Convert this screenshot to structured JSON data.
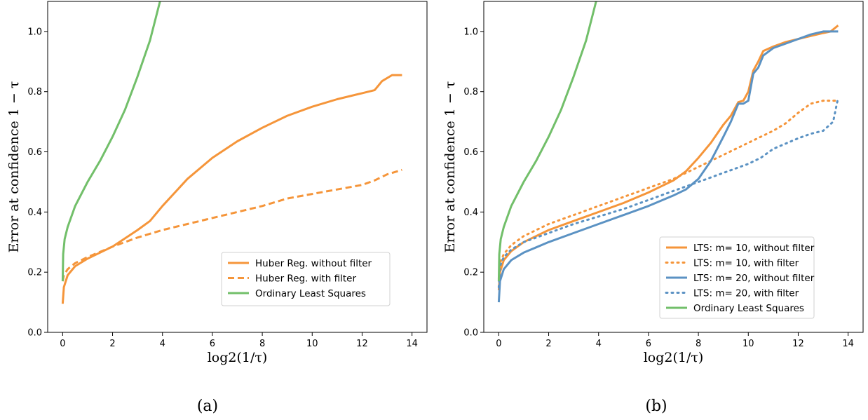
{
  "colors": {
    "orange": "#f5953a",
    "blue": "#5b92c3",
    "green": "#72bf6a"
  },
  "chart_data": [
    {
      "type": "line",
      "panel_label": "(a)",
      "xlabel": "log2(1/τ)",
      "ylabel": "Error at confidence 1 − τ",
      "xlim": [
        -0.6,
        14.6
      ],
      "ylim": [
        0.0,
        1.1
      ],
      "xticks": [
        "0",
        "2",
        "4",
        "6",
        "8",
        "10",
        "12",
        "14"
      ],
      "yticks": [
        "0.0",
        "0.2",
        "0.4",
        "0.6",
        "0.8",
        "1.0"
      ],
      "legend_position": "lower-right",
      "series": [
        {
          "name": "Huber Reg. without filter",
          "color": "orange",
          "style": "solid",
          "x": [
            0,
            0.05,
            0.2,
            0.5,
            1,
            2,
            3,
            3.5,
            4,
            5,
            6,
            7,
            8,
            9,
            10,
            11,
            12,
            12.5,
            12.8,
            13.2,
            13.6
          ],
          "y": [
            0.095,
            0.15,
            0.19,
            0.22,
            0.245,
            0.285,
            0.34,
            0.37,
            0.42,
            0.51,
            0.58,
            0.635,
            0.68,
            0.72,
            0.75,
            0.775,
            0.795,
            0.805,
            0.835,
            0.855,
            0.855
          ]
        },
        {
          "name": "Huber Reg. with filter",
          "color": "orange",
          "style": "dashed",
          "x": [
            0,
            0.05,
            0.2,
            0.5,
            1,
            2,
            3,
            4,
            5,
            6,
            7,
            8,
            9,
            10,
            11,
            12,
            12.5,
            13,
            13.6
          ],
          "y": [
            0.17,
            0.19,
            0.21,
            0.23,
            0.25,
            0.285,
            0.315,
            0.34,
            0.36,
            0.38,
            0.4,
            0.42,
            0.445,
            0.46,
            0.475,
            0.49,
            0.505,
            0.525,
            0.54
          ]
        },
        {
          "name": "Ordinary Least Squares",
          "color": "green",
          "style": "solid",
          "x": [
            0,
            0.02,
            0.08,
            0.2,
            0.5,
            1,
            1.5,
            2,
            2.5,
            3,
            3.5,
            3.9
          ],
          "y": [
            0.17,
            0.26,
            0.31,
            0.35,
            0.42,
            0.5,
            0.57,
            0.65,
            0.74,
            0.85,
            0.97,
            1.1
          ]
        }
      ]
    },
    {
      "type": "line",
      "panel_label": "(b)",
      "xlabel": "log2(1/τ)",
      "ylabel": "Error at confidence 1 − τ",
      "xlim": [
        -0.6,
        14.6
      ],
      "ylim": [
        0.0,
        1.1
      ],
      "xticks": [
        "0",
        "2",
        "4",
        "6",
        "8",
        "10",
        "12",
        "14"
      ],
      "yticks": [
        "0.0",
        "0.2",
        "0.4",
        "0.6",
        "0.8",
        "1.0"
      ],
      "legend_position": "lower-right",
      "series": [
        {
          "name": "LTS: m= 10, without filter",
          "color": "orange",
          "style": "solid",
          "x": [
            0,
            0.05,
            0.2,
            0.5,
            1,
            2,
            3,
            4,
            5,
            6,
            7,
            7.5,
            8,
            8.5,
            9,
            9.3,
            9.6,
            9.8,
            10,
            10.2,
            10.4,
            10.6,
            11,
            11.5,
            12,
            12.5,
            13,
            13.3,
            13.6
          ],
          "y": [
            0.14,
            0.2,
            0.24,
            0.27,
            0.3,
            0.34,
            0.37,
            0.4,
            0.43,
            0.465,
            0.505,
            0.535,
            0.58,
            0.63,
            0.69,
            0.72,
            0.765,
            0.77,
            0.8,
            0.87,
            0.9,
            0.935,
            0.95,
            0.965,
            0.975,
            0.985,
            0.995,
            1.0,
            1.02
          ]
        },
        {
          "name": "LTS: m= 10, with filter",
          "color": "orange",
          "style": "dotted",
          "x": [
            0,
            0.05,
            0.2,
            0.5,
            1,
            2,
            3,
            4,
            5,
            6,
            7,
            8,
            9,
            10,
            11,
            11.5,
            12,
            12.5,
            13,
            13.6
          ],
          "y": [
            0.18,
            0.23,
            0.26,
            0.29,
            0.32,
            0.36,
            0.39,
            0.42,
            0.45,
            0.48,
            0.51,
            0.55,
            0.59,
            0.63,
            0.67,
            0.695,
            0.73,
            0.76,
            0.77,
            0.77
          ]
        },
        {
          "name": "LTS: m= 20, without filter",
          "color": "blue",
          "style": "solid",
          "x": [
            0,
            0.05,
            0.2,
            0.5,
            1,
            2,
            3,
            4,
            5,
            6,
            7,
            7.5,
            8,
            8.5,
            9,
            9.3,
            9.6,
            9.8,
            10,
            10.2,
            10.4,
            10.6,
            11,
            11.5,
            12,
            12.5,
            13,
            13.6
          ],
          "y": [
            0.1,
            0.17,
            0.21,
            0.24,
            0.265,
            0.3,
            0.33,
            0.36,
            0.39,
            0.42,
            0.455,
            0.475,
            0.51,
            0.57,
            0.65,
            0.7,
            0.76,
            0.76,
            0.77,
            0.86,
            0.88,
            0.92,
            0.945,
            0.96,
            0.975,
            0.99,
            1.0,
            1.0
          ]
        },
        {
          "name": "LTS: m= 20, with filter",
          "color": "blue",
          "style": "dotted",
          "x": [
            0,
            0.05,
            0.2,
            0.5,
            1,
            2,
            3,
            4,
            5,
            6,
            7,
            8,
            9,
            10,
            10.5,
            11,
            12,
            12.5,
            13,
            13.4,
            13.6
          ],
          "y": [
            0.15,
            0.22,
            0.25,
            0.275,
            0.3,
            0.33,
            0.36,
            0.385,
            0.41,
            0.44,
            0.47,
            0.5,
            0.53,
            0.56,
            0.58,
            0.61,
            0.645,
            0.66,
            0.67,
            0.7,
            0.78
          ]
        },
        {
          "name": "Ordinary Least Squares",
          "color": "green",
          "style": "solid",
          "x": [
            0,
            0.02,
            0.08,
            0.2,
            0.5,
            1,
            1.5,
            2,
            2.5,
            3,
            3.5,
            3.9
          ],
          "y": [
            0.17,
            0.26,
            0.31,
            0.35,
            0.42,
            0.5,
            0.57,
            0.65,
            0.74,
            0.85,
            0.97,
            1.1
          ]
        }
      ]
    }
  ]
}
